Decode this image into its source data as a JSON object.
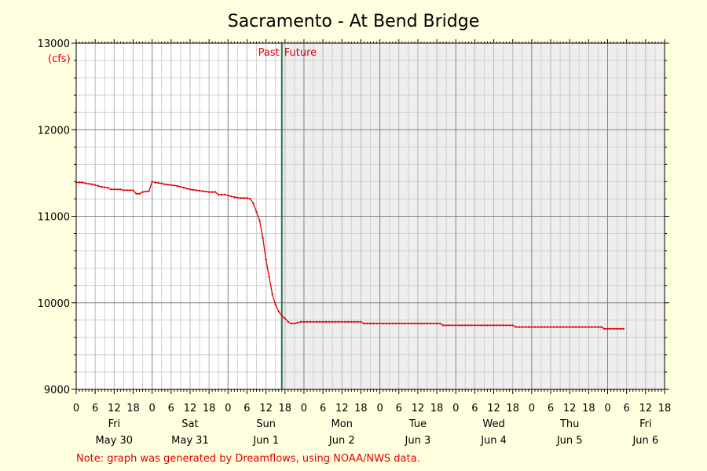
{
  "chart_data": {
    "type": "line",
    "title": "Sacramento - At Bend Bridge",
    "ylabel_unit": "(cfs)",
    "ylim": [
      9000,
      13000
    ],
    "y_ticks": [
      9000,
      10000,
      11000,
      12000,
      13000
    ],
    "x_unit": "hours since May 30 00:00",
    "xlim": [
      0,
      186
    ],
    "x_tick_labels": [
      "0",
      "6",
      "12",
      "18",
      "0",
      "6",
      "12",
      "18",
      "0",
      "6",
      "12",
      "18",
      "0",
      "6",
      "12",
      "18",
      "0",
      "6",
      "12",
      "18",
      "0",
      "6",
      "12",
      "18",
      "0",
      "6",
      "12",
      "18",
      "0",
      "6",
      "12",
      "18"
    ],
    "days": [
      {
        "weekday": "Fri",
        "date": "May 30"
      },
      {
        "weekday": "Sat",
        "date": "May 31"
      },
      {
        "weekday": "Sun",
        "date": "Jun 1"
      },
      {
        "weekday": "Mon",
        "date": "Jun 2"
      },
      {
        "weekday": "Tue",
        "date": "Jun 3"
      },
      {
        "weekday": "Wed",
        "date": "Jun 4"
      },
      {
        "weekday": "Thu",
        "date": "Jun 5"
      },
      {
        "weekday": "Fri",
        "date": "Jun 6"
      }
    ],
    "now_hour": 65,
    "past_label": "Past",
    "future_label": "Future",
    "grid": true,
    "series": [
      {
        "color": "#E00000",
        "points": [
          [
            0,
            11390
          ],
          [
            2,
            11390
          ],
          [
            3,
            11380
          ],
          [
            5,
            11370
          ],
          [
            6,
            11360
          ],
          [
            8,
            11340
          ],
          [
            10,
            11330
          ],
          [
            11,
            11310
          ],
          [
            14,
            11310
          ],
          [
            15,
            11300
          ],
          [
            18,
            11300
          ],
          [
            19,
            11260
          ],
          [
            20,
            11260
          ],
          [
            21,
            11280
          ],
          [
            23,
            11290
          ],
          [
            24,
            11400
          ],
          [
            25,
            11390
          ],
          [
            27,
            11380
          ],
          [
            28,
            11370
          ],
          [
            30,
            11360
          ],
          [
            32,
            11350
          ],
          [
            34,
            11330
          ],
          [
            36,
            11310
          ],
          [
            38,
            11300
          ],
          [
            40,
            11290
          ],
          [
            42,
            11280
          ],
          [
            44,
            11280
          ],
          [
            45,
            11250
          ],
          [
            47,
            11250
          ],
          [
            48,
            11240
          ],
          [
            50,
            11220
          ],
          [
            52,
            11210
          ],
          [
            54,
            11210
          ],
          [
            55,
            11200
          ],
          [
            56,
            11150
          ],
          [
            57,
            11050
          ],
          [
            58,
            10950
          ],
          [
            59,
            10750
          ],
          [
            60,
            10500
          ],
          [
            61,
            10300
          ],
          [
            62,
            10100
          ],
          [
            63,
            9980
          ],
          [
            64,
            9900
          ],
          [
            65,
            9850
          ],
          [
            66,
            9820
          ],
          [
            67,
            9780
          ],
          [
            68,
            9760
          ],
          [
            69,
            9760
          ],
          [
            70,
            9770
          ],
          [
            71,
            9780
          ],
          [
            90,
            9780
          ],
          [
            91,
            9760
          ],
          [
            115,
            9760
          ],
          [
            116,
            9740
          ],
          [
            138,
            9740
          ],
          [
            139,
            9720
          ],
          [
            166,
            9720
          ],
          [
            167,
            9700
          ],
          [
            173,
            9700
          ]
        ]
      }
    ],
    "note": "Note: graph was generated by Dreamflows, using NOAA/NWS data."
  },
  "colors": {
    "background": "#FFFFE0",
    "plot_past": "#FFFFFF",
    "plot_future": "#EEEEEE",
    "grid_major": "#808080",
    "grid_minor": "#D0D0D0",
    "now_line": "#2E6B4F",
    "series": "#E00000",
    "note": "#E00000"
  }
}
